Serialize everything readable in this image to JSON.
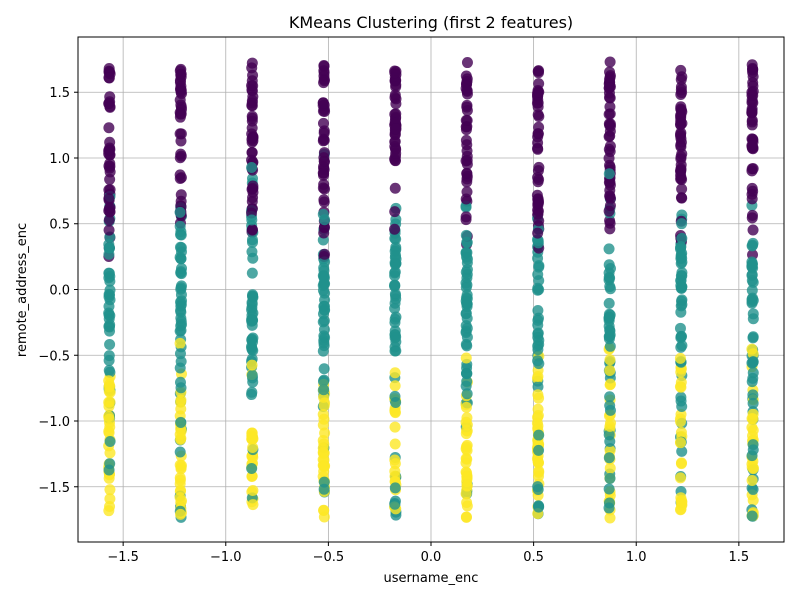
{
  "chart_data": {
    "type": "scatter",
    "title": "KMeans Clustering (first 2 features)",
    "xlabel": "username_enc",
    "ylabel": "remote_address_enc",
    "xlim": [
      -1.72,
      1.72
    ],
    "ylim": [
      -1.92,
      1.92
    ],
    "xticks": [
      -1.5,
      -1.0,
      -0.5,
      0.0,
      0.5,
      1.0,
      1.5
    ],
    "xtick_labels": [
      "−1.5",
      "−1.0",
      "−0.5",
      "0.0",
      "0.5",
      "1.0",
      "1.5"
    ],
    "yticks": [
      -1.5,
      -1.0,
      -0.5,
      0.0,
      0.5,
      1.0,
      1.5
    ],
    "ytick_labels": [
      "−1.5",
      "−1.0",
      "−0.5",
      "0.0",
      "0.5",
      "1.0",
      "1.5"
    ],
    "grid": true,
    "x_columns": [
      -1.567,
      -1.219,
      -0.871,
      -0.522,
      -0.174,
      0.174,
      0.522,
      0.871,
      1.219,
      1.567
    ],
    "y_range": [
      -1.74,
      1.74
    ],
    "clusters": [
      {
        "label": 0,
        "color": "#440154",
        "y_center": 0.9,
        "y_spread": 0.8
      },
      {
        "label": 1,
        "color": "#21918c",
        "y_center": -0.3,
        "y_spread": 1.4
      },
      {
        "label": 2,
        "color": "#fde725",
        "y_center": -1.0,
        "y_spread": 0.75
      }
    ],
    "points_per_column": 120
  }
}
